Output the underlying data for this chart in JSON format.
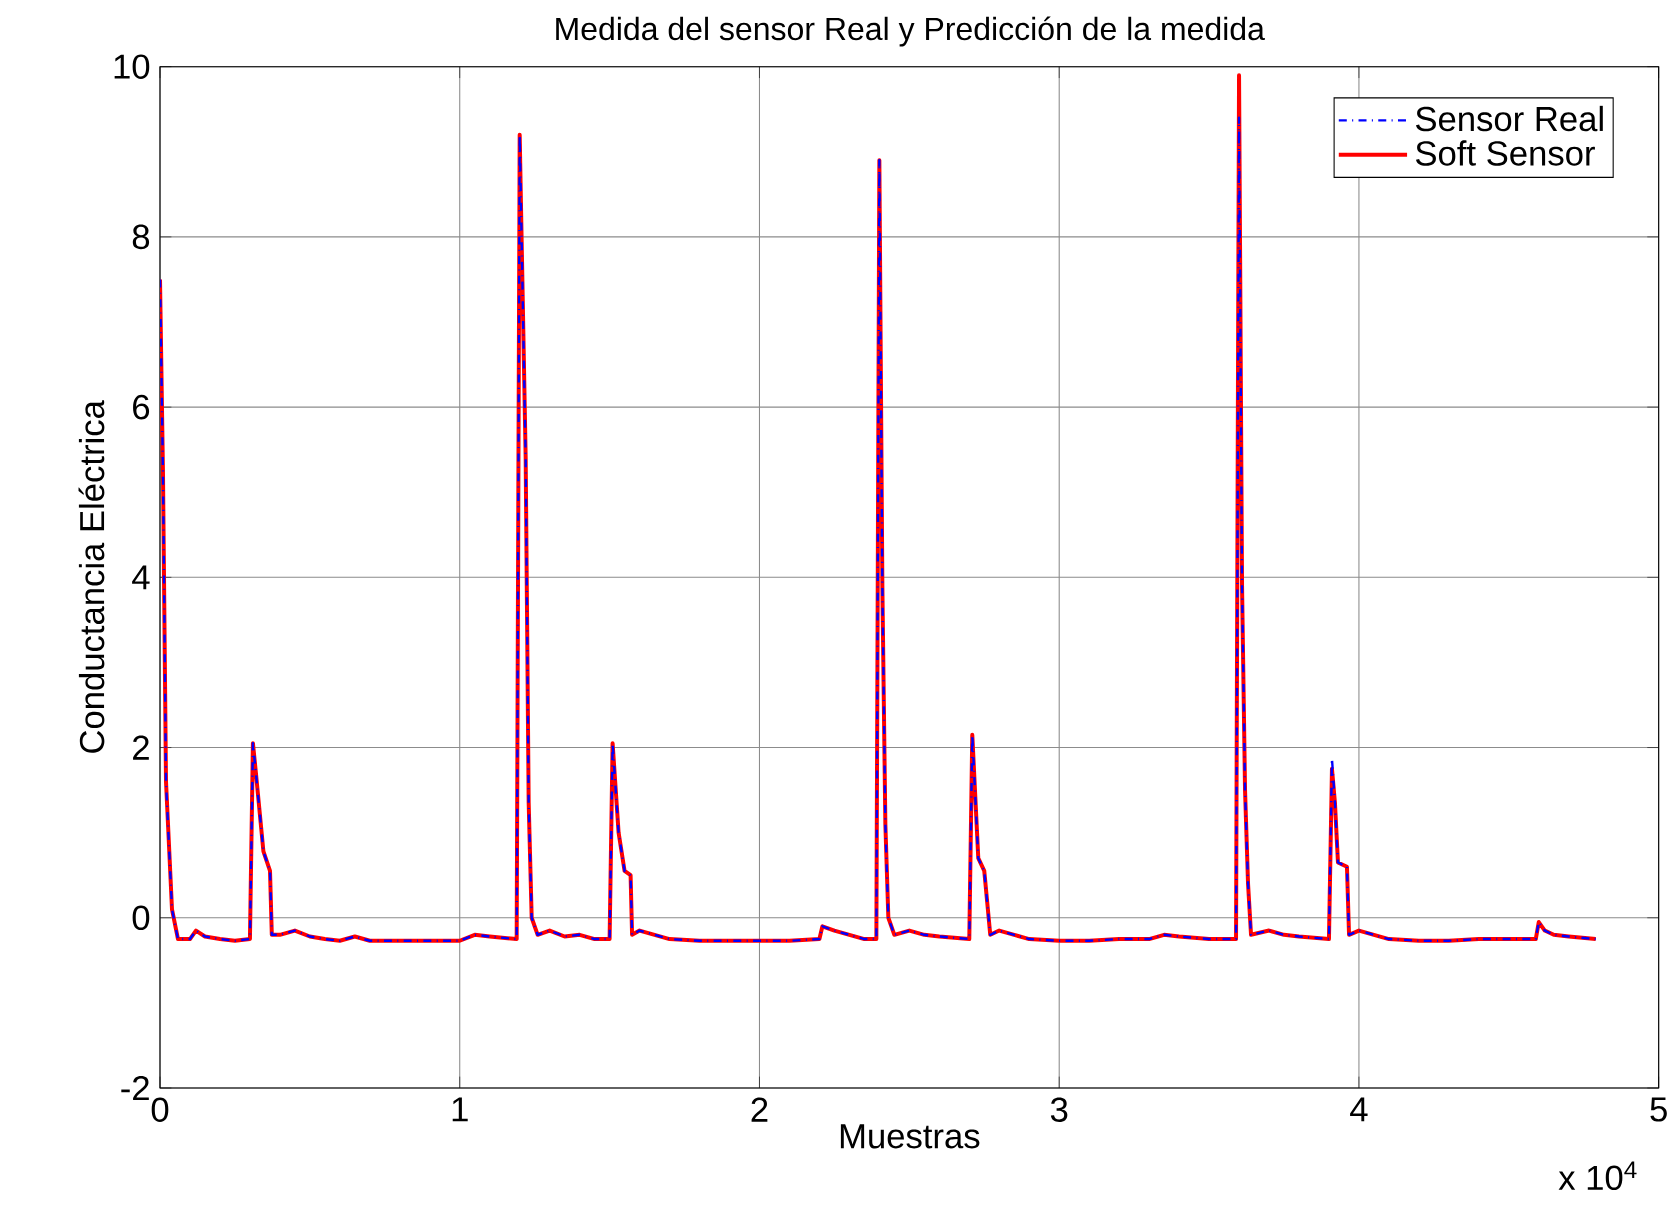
{
  "chart_data": {
    "type": "line",
    "title": "Medida del sensor Real y Predicción de la medida",
    "xlabel": "Muestras",
    "ylabel": "Conductancia Eléctrica",
    "annotations": [
      "x 10$^{4}$"
    ],
    "x": [
      0,
      0.01,
      0.02,
      0.04,
      0.06,
      0.1,
      0.12,
      0.15,
      0.2,
      0.25,
      0.3,
      0.31,
      0.32,
      0.345,
      0.367,
      0.373,
      0.4,
      0.45,
      0.5,
      0.55,
      0.6,
      0.65,
      0.7,
      0.9,
      1.0,
      1.05,
      1.1,
      1.19,
      1.2,
      1.22,
      1.23,
      1.24,
      1.26,
      1.3,
      1.35,
      1.4,
      1.45,
      1.5,
      1.51,
      1.53,
      1.55,
      1.57,
      1.575,
      1.6,
      1.65,
      1.7,
      1.8,
      1.9,
      2.0,
      2.1,
      2.2,
      2.21,
      2.25,
      2.3,
      2.35,
      2.39,
      2.4,
      2.41,
      2.42,
      2.43,
      2.45,
      2.5,
      2.55,
      2.6,
      2.7,
      2.71,
      2.73,
      2.75,
      2.77,
      2.8,
      2.85,
      2.9,
      3.0,
      3.1,
      3.2,
      3.3,
      3.35,
      3.4,
      3.5,
      3.59,
      3.6,
      3.61,
      3.62,
      3.63,
      3.64,
      3.7,
      3.75,
      3.8,
      3.9,
      3.91,
      3.92,
      3.93,
      3.96,
      3.967,
      4.0,
      4.05,
      4.1,
      4.2,
      4.3,
      4.4,
      4.5,
      4.59,
      4.6,
      4.62,
      4.65,
      4.7,
      4.79
    ],
    "series": [
      {
        "name": "Sensor Real",
        "color": "#0000ff",
        "line_style": "dashdot",
        "values": [
          7.5,
          5.2,
          1.6,
          0.1,
          -0.25,
          -0.25,
          -0.15,
          -0.22,
          -0.25,
          -0.27,
          -0.25,
          2.05,
          1.7,
          0.78,
          0.55,
          -0.2,
          -0.2,
          -0.15,
          -0.22,
          -0.25,
          -0.27,
          -0.22,
          -0.27,
          -0.27,
          -0.27,
          -0.2,
          -0.22,
          -0.25,
          9.2,
          5.4,
          1.35,
          0.0,
          -0.2,
          -0.15,
          -0.22,
          -0.2,
          -0.25,
          -0.25,
          2.05,
          1.0,
          0.55,
          0.5,
          -0.2,
          -0.15,
          -0.2,
          -0.25,
          -0.27,
          -0.27,
          -0.27,
          -0.27,
          -0.25,
          -0.1,
          -0.15,
          -0.2,
          -0.25,
          -0.25,
          8.9,
          3.9,
          1.1,
          0.0,
          -0.2,
          -0.15,
          -0.2,
          -0.22,
          -0.25,
          2.15,
          0.7,
          0.55,
          -0.2,
          -0.15,
          -0.2,
          -0.25,
          -0.27,
          -0.27,
          -0.25,
          -0.25,
          -0.2,
          -0.22,
          -0.25,
          -0.25,
          9.4,
          3.9,
          1.5,
          0.4,
          -0.2,
          -0.15,
          -0.2,
          -0.22,
          -0.25,
          1.87,
          1.35,
          0.65,
          0.6,
          -0.2,
          -0.15,
          -0.2,
          -0.25,
          -0.27,
          -0.27,
          -0.25,
          -0.25,
          -0.25,
          -0.05,
          -0.15,
          -0.2,
          -0.22,
          -0.25
        ]
      },
      {
        "name": "Soft Sensor",
        "color": "#ff0000",
        "line_style": "solid",
        "values": [
          7.5,
          5.2,
          1.6,
          0.1,
          -0.25,
          -0.25,
          -0.15,
          -0.22,
          -0.25,
          -0.27,
          -0.25,
          2.05,
          1.7,
          0.78,
          0.55,
          -0.2,
          -0.2,
          -0.15,
          -0.22,
          -0.25,
          -0.27,
          -0.22,
          -0.27,
          -0.27,
          -0.27,
          -0.2,
          -0.22,
          -0.25,
          9.2,
          5.4,
          1.35,
          0.0,
          -0.2,
          -0.15,
          -0.22,
          -0.2,
          -0.25,
          -0.25,
          2.05,
          1.0,
          0.55,
          0.5,
          -0.2,
          -0.15,
          -0.2,
          -0.25,
          -0.27,
          -0.27,
          -0.27,
          -0.27,
          -0.25,
          -0.1,
          -0.15,
          -0.2,
          -0.25,
          -0.25,
          8.9,
          3.9,
          1.1,
          0.0,
          -0.2,
          -0.15,
          -0.2,
          -0.22,
          -0.25,
          2.15,
          0.7,
          0.55,
          -0.2,
          -0.15,
          -0.2,
          -0.25,
          -0.27,
          -0.27,
          -0.25,
          -0.25,
          -0.2,
          -0.22,
          -0.25,
          -0.25,
          9.9,
          3.9,
          1.5,
          0.4,
          -0.2,
          -0.15,
          -0.2,
          -0.22,
          -0.25,
          1.75,
          1.35,
          0.65,
          0.6,
          -0.2,
          -0.15,
          -0.2,
          -0.25,
          -0.27,
          -0.27,
          -0.25,
          -0.25,
          -0.25,
          -0.05,
          -0.15,
          -0.2,
          -0.22,
          -0.25
        ]
      }
    ],
    "xlim": [
      0,
      5
    ],
    "xticks": [
      0,
      1,
      2,
      3,
      4,
      5
    ],
    "ylim": [
      -2,
      10
    ],
    "yticks": [
      -2,
      0,
      2,
      4,
      6,
      8,
      10
    ],
    "grid": true,
    "legend": "top right"
  }
}
